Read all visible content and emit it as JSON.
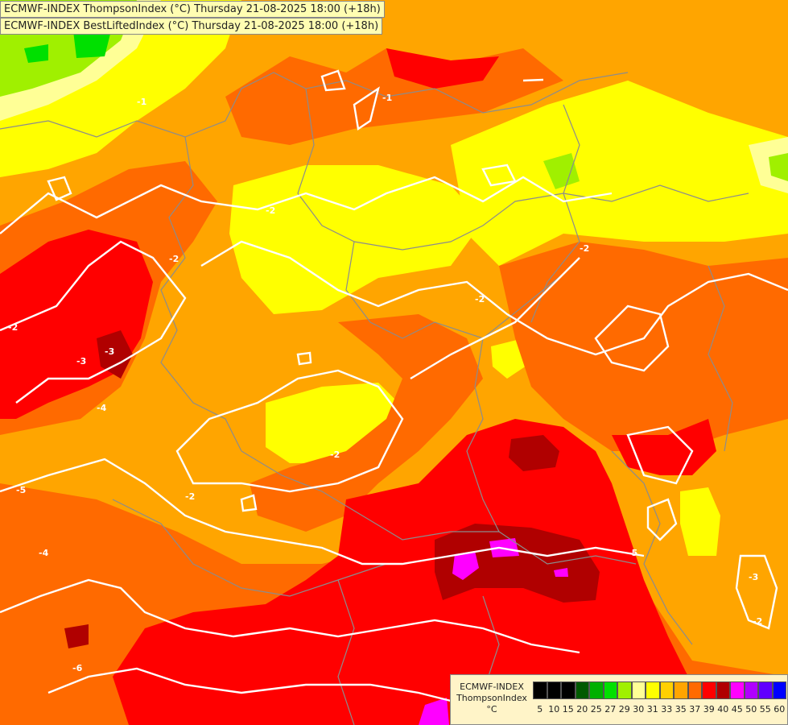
{
  "titles": {
    "line1": "ECMWF-INDEX ThompsonIndex (°C) Thursday 21-08-2025 18:00 (+18h)",
    "line2": "ECMWF-INDEX BestLiftedIndex (°C) Thursday 21-08-2025 18:00 (+18h)"
  },
  "legend": {
    "source": "ECMWF-INDEX",
    "parameter": "ThompsonIndex",
    "unit": "°C",
    "colors": [
      "#000000",
      "#000000",
      "#000000",
      "#005a00",
      "#00b000",
      "#00e000",
      "#a0f000",
      "#ffff96",
      "#ffff00",
      "#ffd000",
      "#ffa500",
      "#ff6a00",
      "#ff0000",
      "#b00000",
      "#ff00ff",
      "#b000ff",
      "#6000ff",
      "#0000ff"
    ],
    "ticks": [
      "5",
      "10",
      "15",
      "20",
      "25",
      "27",
      "29",
      "30",
      "31",
      "33",
      "35",
      "37",
      "39",
      "40",
      "45",
      "50",
      "55",
      "60"
    ]
  },
  "contour_labels": [
    "-1",
    "-2",
    "-3",
    "-2",
    "-2",
    "-2",
    "-2",
    "-3",
    "-4",
    "-5",
    "-6",
    "-1",
    "-2",
    "-3",
    "-4",
    "-5",
    "-2",
    "-2"
  ],
  "colors": {
    "orange": "#ffa500",
    "dark_orange": "#ff6a00",
    "red": "#ff0000",
    "dark_red": "#b00000",
    "yellow": "#ffff00",
    "light_yellow": "#ffff96",
    "yellow_green": "#a0f000",
    "green": "#00e000",
    "magenta": "#ff00ff",
    "contour": "#ffffff",
    "border": "#8c8c8c"
  }
}
